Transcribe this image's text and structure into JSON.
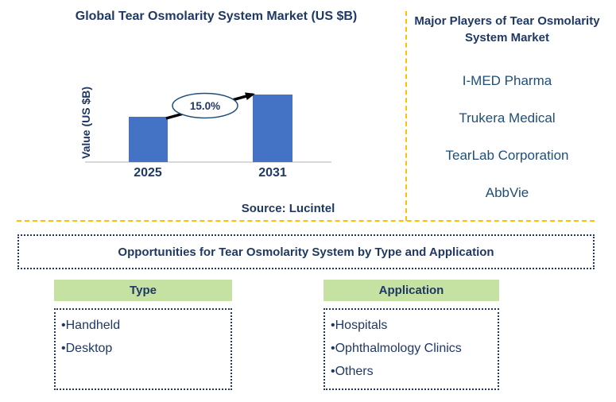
{
  "chart_data": {
    "type": "bar",
    "title": "Global Tear Osmolarity System Market (US $B)",
    "xlabel": "",
    "ylabel": "Value (US $B)",
    "categories": [
      "2025",
      "2031"
    ],
    "values": [
      0.67,
      1.0
    ],
    "value_scale": "relative bar heights (value axis has no numeric tick labels)",
    "growth_label": "15.0%",
    "annotation": "black growth arrow from 2025 bar to 2031 bar through ellipse labeled 15.0%",
    "legend": "none",
    "grid": "off"
  },
  "source_label": "Source: Lucintel",
  "players": {
    "title": "Major Players of Tear Osmolarity System Market",
    "companies": [
      "I-MED Pharma",
      "Trukera Medical",
      "TearLab Corporation",
      "AbbVie"
    ]
  },
  "opportunities": {
    "title": "Opportunities for Tear Osmolarity System by Type and Application",
    "type": {
      "header": "Type",
      "items": [
        "Handheld",
        "Desktop"
      ]
    },
    "application": {
      "header": "Application",
      "items": [
        "Hospitals",
        "Ophthalmology Clinics",
        "Others"
      ]
    }
  },
  "colors": {
    "heading_navy": "#1F3864",
    "company_blue": "#1F4E79",
    "bar_blue": "#4472C4",
    "divider_orange": "#FFC000",
    "header_green": "#C5E2A3",
    "axis_gray": "#D9D9D9",
    "arrow_black": "#000000"
  }
}
